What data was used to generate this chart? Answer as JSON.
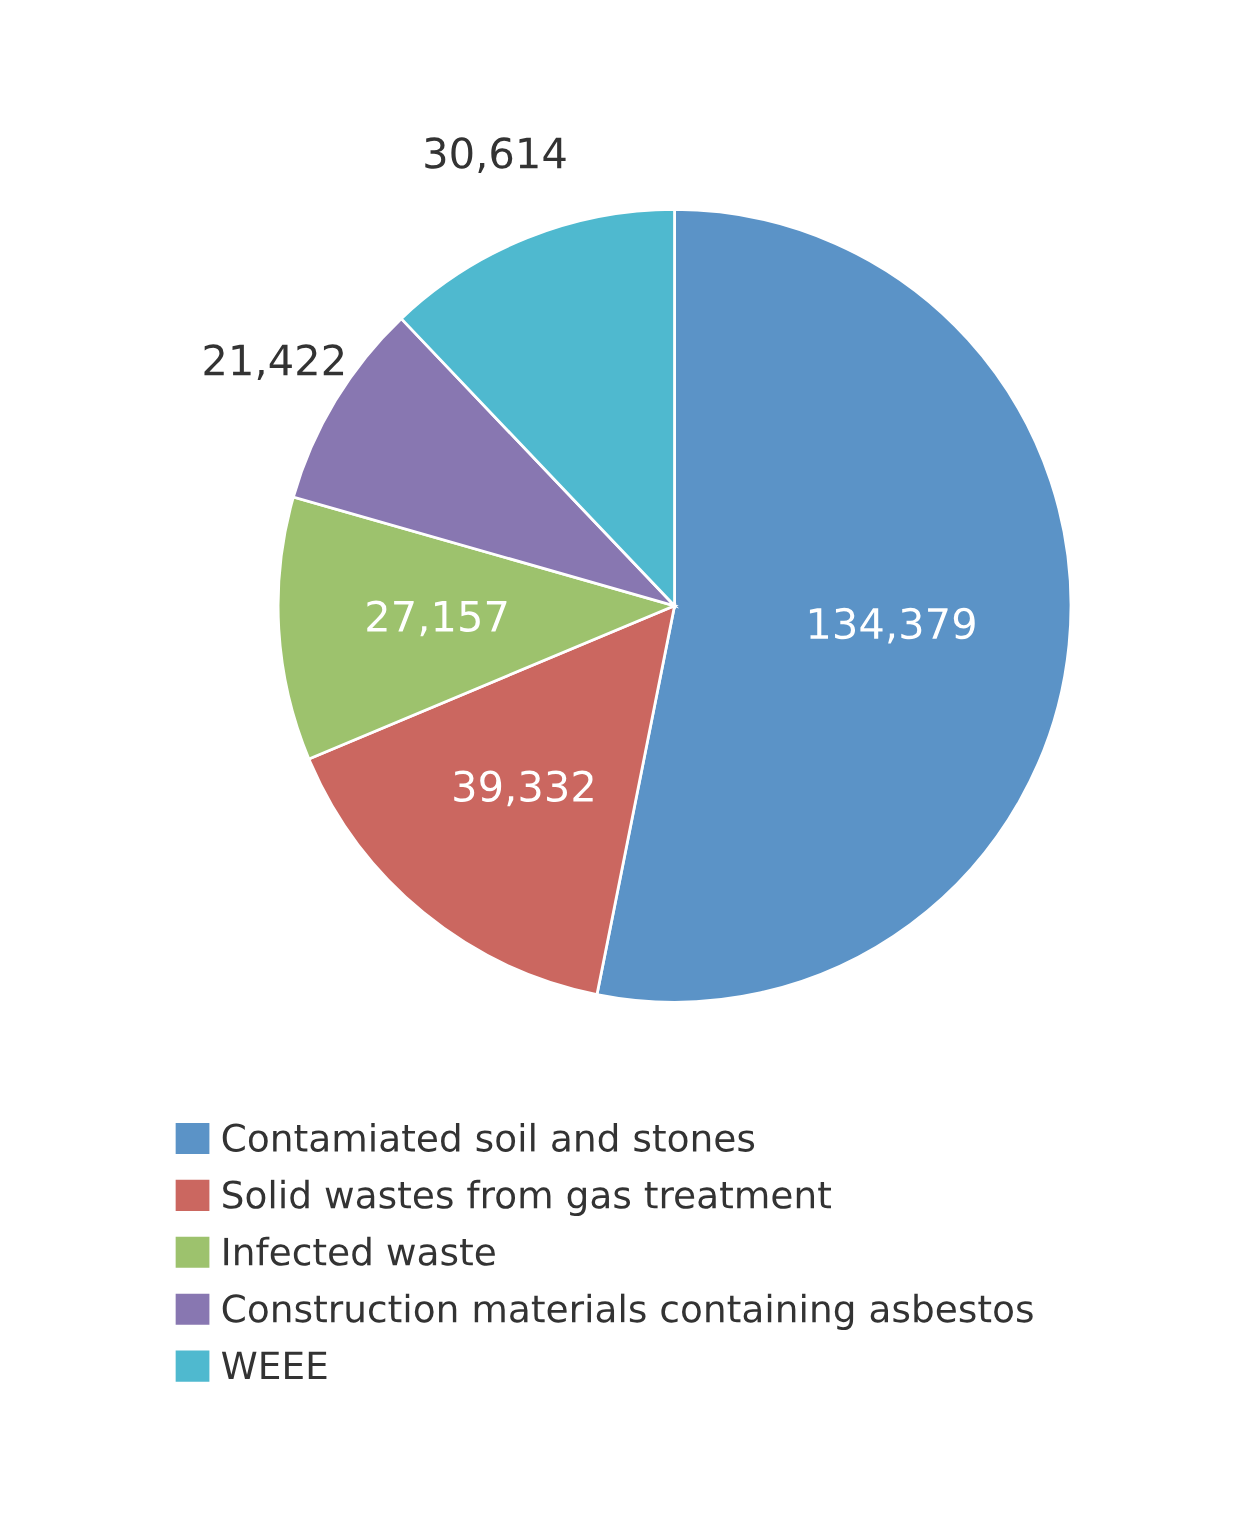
{
  "chart_data": {
    "type": "pie",
    "categories": [
      "Contamiated soil and stones",
      "Solid wastes from gas treatment",
      "Infected waste",
      "Construction materials containing asbestos",
      "WEEE"
    ],
    "values": [
      134379,
      39332,
      27157,
      21422,
      30614
    ],
    "value_labels": [
      "134,379",
      "39,332",
      "27,157",
      "21,422",
      "30,614"
    ],
    "colors": [
      "#5b93c7",
      "#cb6760",
      "#9dc26d",
      "#8877b1",
      "#4fb9cf"
    ],
    "legend": "bottom"
  }
}
